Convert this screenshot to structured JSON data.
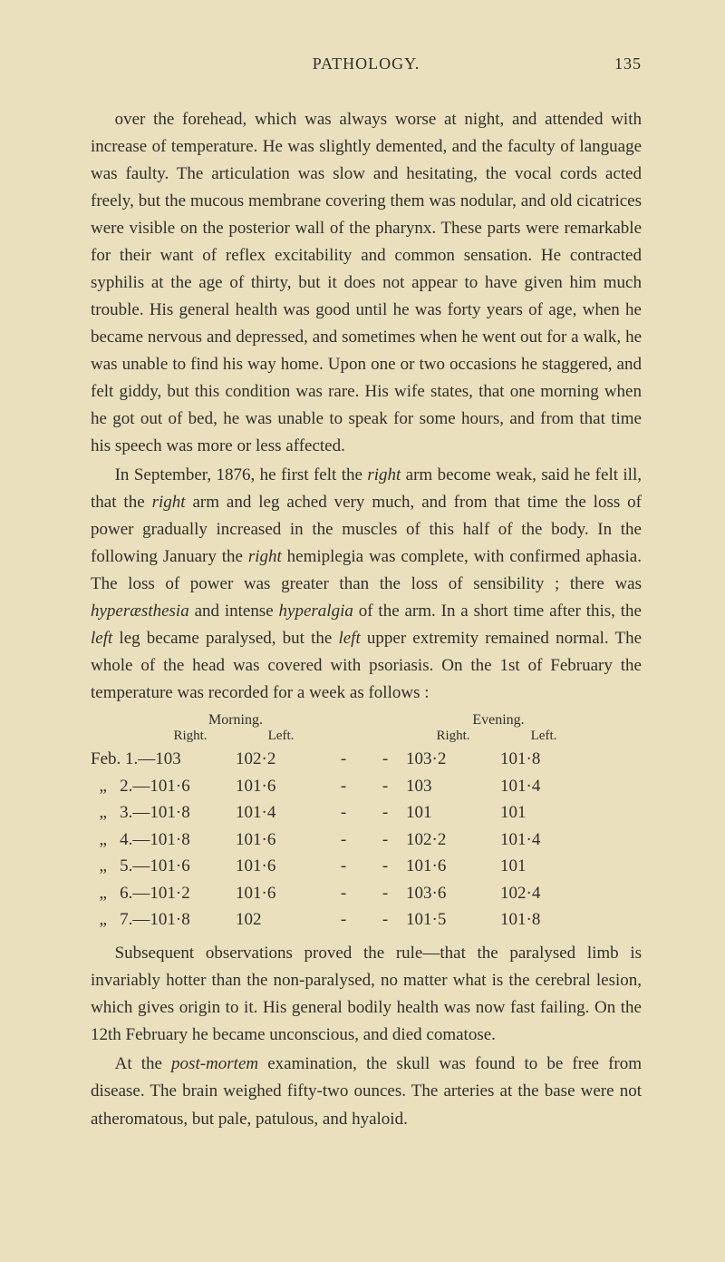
{
  "header": {
    "title": "PATHOLOGY.",
    "page_number": "135"
  },
  "paragraphs": {
    "p1": "over the forehead, which was always worse at night, and attended with increase of temperature. He was slightly demented, and the faculty of language was faulty. The articulation was slow and hesitating, the vocal cords acted freely, but the mucous membrane covering them was nodular, and old cicatrices were visible on the posterior wall of the pharynx. These parts were remarkable for their want of reflex excitability and common sensation. He contracted syphilis at the age of thirty, but it does not appear to have given him much trouble. His general health was good until he was forty years of age, when he became nervous and depressed, and sometimes when he went out for a walk, he was unable to find his way home. Upon one or two occasions he staggered, and felt giddy, but this condition was rare. His wife states, that one morning when he got out of bed, he was unable to speak for some hours, and from that time his speech was more or less affected.",
    "p2_a": "In September, 1876, he first felt the ",
    "p2_b": "right",
    "p2_c": " arm become weak, said he felt ill, that the ",
    "p2_d": "right",
    "p2_e": " arm and leg ached very much, and from that time the loss of power gradually increased in the muscles of this half of the body. In the following January the ",
    "p2_f": "right",
    "p2_g": " hemiplegia was complete, with confirmed aphasia. The loss of power was greater than the loss of sensibility ; there was ",
    "p2_h": "hyperæsthesia",
    "p2_i": " and intense ",
    "p2_j": "hyperalgia",
    "p2_k": " of the arm. In a short time after this, the ",
    "p2_l": "left",
    "p2_m": " leg became paralysed, but the ",
    "p2_n": "left",
    "p2_o": " upper extremity remained normal. The whole of the head was covered with psoriasis. On the 1st of February the temperature was recorded for a week as follows :",
    "p3": "Subsequent observations proved the rule—that the paralysed limb is invariably hotter than the non-paralysed, no matter what is the cerebral lesion, which gives origin to it. His general bodily health was now fast failing. On the 12th February he became unconscious, and died comatose.",
    "p4_a": "At the ",
    "p4_b": "post-mortem",
    "p4_c": " examination, the skull was found to be free from disease. The brain weighed fifty-two ounces. The arteries at the base were not atheromatous, but pale, patulous, and hyaloid."
  },
  "table": {
    "group_morning": "Morning.",
    "group_evening": "Evening.",
    "sub_right": "Right.",
    "sub_left": "Left.",
    "rows": [
      {
        "label": "Feb. 1.—103",
        "m_left": "102·2",
        "d1": "-",
        "d2": "-",
        "e_right": "103·2",
        "e_left": "101·8"
      },
      {
        "label": "  „   2.—101·6",
        "m_left": "101·6",
        "d1": "-",
        "d2": "-",
        "e_right": "103",
        "e_left": "101·4"
      },
      {
        "label": "  „   3.—101·8",
        "m_left": "101·4",
        "d1": "-",
        "d2": "-",
        "e_right": "101",
        "e_left": "101"
      },
      {
        "label": "  „   4.—101·8",
        "m_left": "101·6",
        "d1": "-",
        "d2": "-",
        "e_right": "102·2",
        "e_left": "101·4"
      },
      {
        "label": "  „   5.—101·6",
        "m_left": "101·6",
        "d1": "-",
        "d2": "-",
        "e_right": "101·6",
        "e_left": "101"
      },
      {
        "label": "  „   6.—101·2",
        "m_left": "101·6",
        "d1": "-",
        "d2": "-",
        "e_right": "103·6",
        "e_left": "102·4"
      },
      {
        "label": "  „   7.—101·8",
        "m_left": "102",
        "d1": "-",
        "d2": "-",
        "e_right": "101·5",
        "e_left": "101·8"
      }
    ]
  },
  "colors": {
    "background": "#ebe0bd",
    "text": "#2f2f2c"
  },
  "typography": {
    "body_fontsize_pt": 14,
    "header_fontsize_pt": 13,
    "table_header_fontsize_pt": 12,
    "font_family": "Georgia / old-style serif"
  }
}
